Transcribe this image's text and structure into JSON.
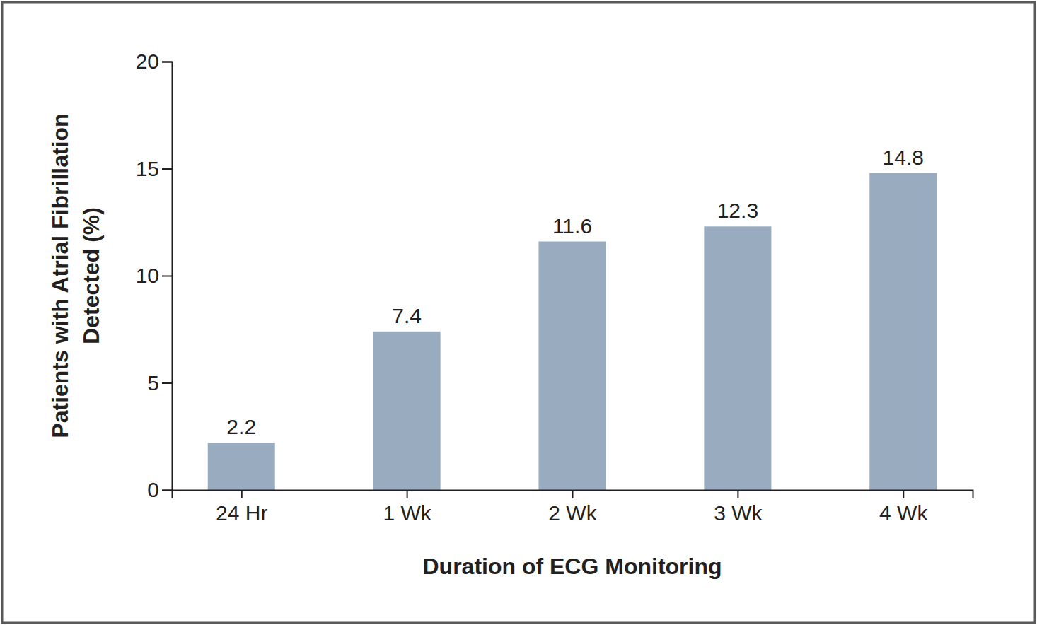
{
  "chart_data": {
    "type": "bar",
    "y_label": [
      "Patients with Atrial Fibrillation",
      "Detected (%)"
    ],
    "x_label": "Duration of ECG Monitoring",
    "categories": [
      "24 Hr",
      "1 Wk",
      "2 Wk",
      "3 Wk",
      "4 Wk"
    ],
    "values": [
      2.2,
      7.4,
      11.6,
      12.3,
      14.8
    ],
    "color": "#98abbf",
    "ylim": [
      0,
      20
    ],
    "yticks": [
      0,
      5,
      10,
      15,
      20
    ],
    "grid": false,
    "data_labels": true
  }
}
